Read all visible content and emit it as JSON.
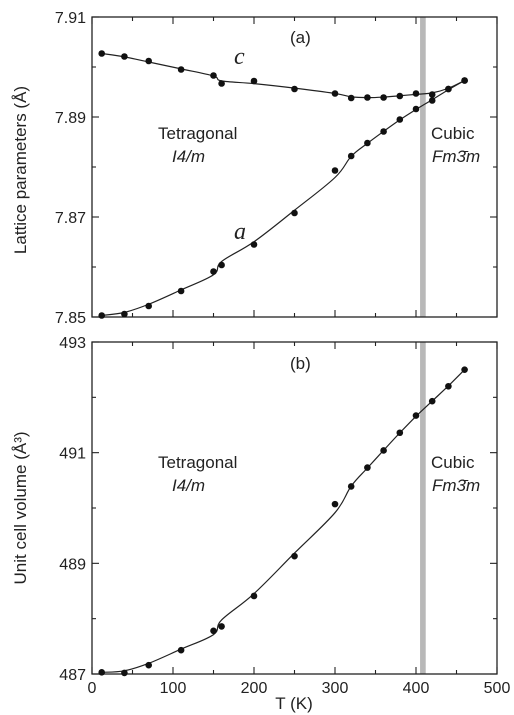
{
  "chart_data": [
    {
      "type": "scatter",
      "panel_label": "(a)",
      "xlabel": "",
      "ylabel": "Lattice parameters (Å)",
      "xlim": [
        0,
        500
      ],
      "ylim": [
        7.85,
        7.91
      ],
      "yticks": [
        "7.85",
        "7.87",
        "7.89",
        "7.91"
      ],
      "transition_band_x": [
        405,
        412
      ],
      "phases": [
        {
          "name": "Tetragonal",
          "group": "I4/m"
        },
        {
          "name": "Cubic",
          "group": "Fm3̄m"
        }
      ],
      "series": [
        {
          "name": "c",
          "x": [
            12,
            40,
            70,
            110,
            150,
            160,
            200,
            250,
            300,
            320,
            340,
            360,
            380,
            400,
            420,
            440,
            460
          ],
          "y": [
            7.9027,
            7.9021,
            7.9012,
            7.8995,
            7.8983,
            7.8967,
            7.8972,
            7.8956,
            7.8947,
            7.8938,
            7.8939,
            7.8939,
            7.8942,
            7.8947,
            7.8945,
            7.8956,
            7.8973
          ]
        },
        {
          "name": "a",
          "x": [
            12,
            40,
            70,
            110,
            150,
            160,
            200,
            250,
            300,
            320,
            340,
            360,
            380,
            400,
            420,
            440,
            460
          ],
          "y": [
            7.8503,
            7.8506,
            7.8522,
            7.8552,
            7.8591,
            7.8604,
            7.8645,
            7.8708,
            7.8793,
            7.8822,
            7.8848,
            7.8871,
            7.8895,
            7.8916,
            7.8933,
            7.8956,
            7.8973
          ]
        }
      ]
    },
    {
      "type": "scatter",
      "panel_label": "(b)",
      "xlabel": "T (K)",
      "ylabel": "Unit cell volume (Å³)",
      "xlim": [
        0,
        500
      ],
      "ylim": [
        487,
        493
      ],
      "xticks": [
        "0",
        "100",
        "200",
        "300",
        "400",
        "500"
      ],
      "yticks": [
        "487",
        "489",
        "491",
        "493"
      ],
      "transition_band_x": [
        405,
        412
      ],
      "phases": [
        {
          "name": "Tetragonal",
          "group": "I4/m"
        },
        {
          "name": "Cubic",
          "group": "Fm3̄m"
        }
      ],
      "series": [
        {
          "name": "",
          "x": [
            12,
            40,
            70,
            110,
            150,
            160,
            200,
            250,
            300,
            320,
            340,
            360,
            380,
            400,
            420,
            440,
            460
          ],
          "y": [
            487.03,
            487.02,
            487.16,
            487.43,
            487.78,
            487.86,
            488.41,
            489.13,
            490.07,
            490.39,
            490.73,
            491.04,
            491.36,
            491.67,
            491.93,
            492.2,
            492.5
          ]
        }
      ]
    }
  ]
}
